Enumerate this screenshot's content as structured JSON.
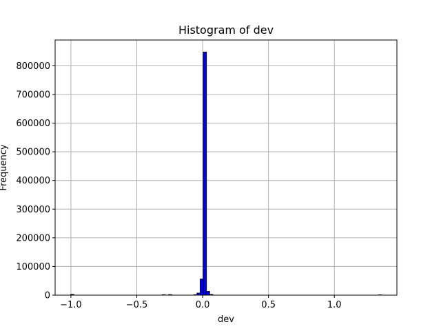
{
  "chart_data": {
    "type": "bar",
    "title": "Histogram of dev",
    "xlabel": "dev",
    "ylabel": "Frequency",
    "xlim": [
      -1.12,
      1.475
    ],
    "ylim": [
      0,
      890000
    ],
    "grid": true,
    "bar_color": "#0000ff",
    "edge_color": "#000000",
    "xticks": [
      {
        "value": -1.0,
        "label": "−1.0"
      },
      {
        "value": -0.5,
        "label": "−0.5"
      },
      {
        "value": 0.0,
        "label": "0.0"
      },
      {
        "value": 0.5,
        "label": "0.5"
      },
      {
        "value": 1.0,
        "label": "1.0"
      }
    ],
    "yticks": [
      {
        "value": 0,
        "label": "0"
      },
      {
        "value": 100000,
        "label": "100000"
      },
      {
        "value": 200000,
        "label": "200000"
      },
      {
        "value": 300000,
        "label": "300000"
      },
      {
        "value": 400000,
        "label": "400000"
      },
      {
        "value": 500000,
        "label": "500000"
      },
      {
        "value": 600000,
        "label": "600000"
      },
      {
        "value": 700000,
        "label": "700000"
      },
      {
        "value": 800000,
        "label": "800000"
      }
    ],
    "bins": [
      {
        "x0": -1.002,
        "x1": -0.978,
        "count": 2500
      },
      {
        "x0": -0.307,
        "x1": -0.283,
        "count": 1500
      },
      {
        "x0": -0.259,
        "x1": -0.235,
        "count": 1800
      },
      {
        "x0": -0.067,
        "x1": -0.043,
        "count": 1500
      },
      {
        "x0": -0.043,
        "x1": -0.019,
        "count": 7000
      },
      {
        "x0": -0.019,
        "x1": 0.005,
        "count": 56000
      },
      {
        "x0": 0.005,
        "x1": 0.029,
        "count": 848000
      },
      {
        "x0": 0.029,
        "x1": 0.053,
        "count": 13000
      },
      {
        "x0": 0.053,
        "x1": 0.077,
        "count": 2500
      },
      {
        "x0": 1.335,
        "x1": 1.359,
        "count": 1000
      }
    ]
  }
}
